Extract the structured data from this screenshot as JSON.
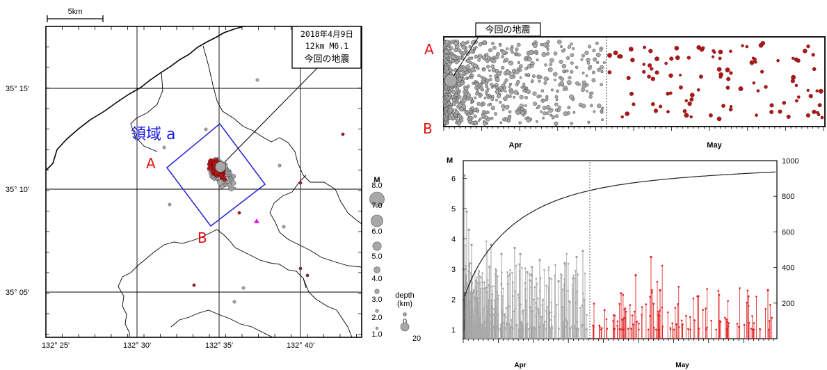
{
  "map": {
    "scale_label": "5km",
    "lat_ticks": [
      "35° 15′",
      "35° 10′",
      "35° 05′"
    ],
    "lon_ticks": [
      "132° 25′",
      "132° 30′",
      "132° 35′",
      "132° 40′"
    ],
    "region_label": "領域 a",
    "point_a": "A",
    "point_b": "B",
    "annotation": {
      "date": "2018年4月9日",
      "depth_mag": "12km  M6.1",
      "desc": "今回の地震"
    }
  },
  "legend": {
    "mag_title": "M",
    "mags": [
      "8.0",
      "7.0",
      "6.0",
      "5.0",
      "4.0",
      "3.0",
      "2.0",
      "1.0"
    ],
    "depth_title": "depth",
    "depth_unit": "(km)",
    "depths": [
      "0",
      "20"
    ]
  },
  "cross_section": {
    "label_a": "A",
    "label_b": "B",
    "callout": "今回の地震",
    "months": [
      "Apr",
      "May"
    ]
  },
  "mt_plot": {
    "y_left_title": "M",
    "y_left_ticks": [
      "6",
      "5",
      "4",
      "3",
      "2",
      "1"
    ],
    "y_right_ticks": [
      "1000",
      "800",
      "600",
      "400",
      "200"
    ],
    "months": [
      "Apr",
      "May"
    ]
  },
  "colors": {
    "before": "#a8a8a8",
    "after": "#b01818",
    "region_box": "#2a2ad8",
    "label_red": "#e01010",
    "marker": "#e020e0"
  }
}
